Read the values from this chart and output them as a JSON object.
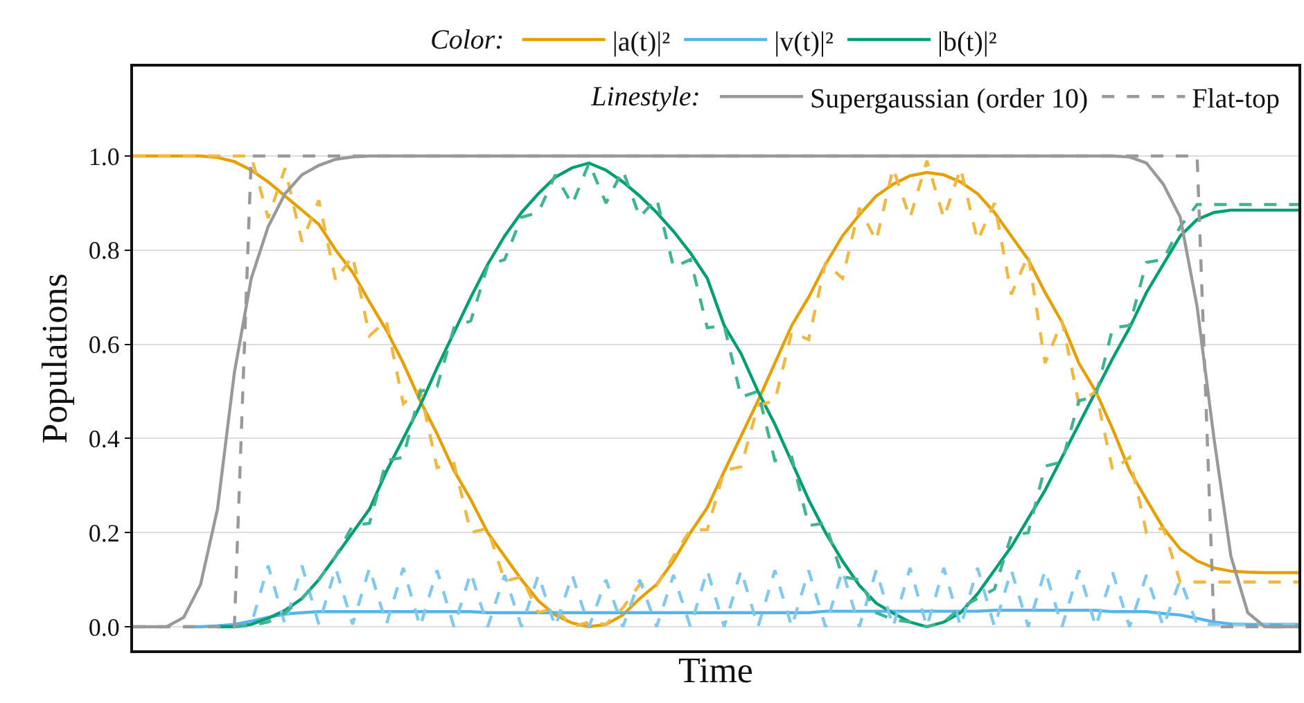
{
  "chart_data": {
    "type": "line",
    "xlabel": "Time",
    "ylabel": "Populations",
    "legend_title": [
      "Color:",
      "Linestyle:"
    ],
    "categories": [
      null,
      null,
      null,
      null,
      null,
      null,
      null,
      null,
      null,
      null,
      null,
      null,
      null,
      null,
      null,
      null,
      null,
      null,
      null,
      null,
      null,
      null,
      null,
      null,
      null,
      null,
      null,
      null,
      null,
      null,
      null,
      null,
      null,
      null,
      null,
      null,
      null,
      null,
      null,
      null,
      null,
      null,
      null,
      null,
      null,
      null,
      null,
      null,
      null,
      null,
      null,
      null,
      null,
      null,
      null,
      null,
      null,
      null,
      null,
      null,
      null,
      null,
      null,
      null,
      null,
      null,
      null,
      null,
      null,
      null
    ],
    "ylim": [
      -0.05,
      1.19
    ],
    "yticks": [
      {
        "value": 0,
        "label": "0.0"
      },
      {
        "value": 0.2,
        "label": "0.2"
      },
      {
        "value": 0.4,
        "label": "0.4"
      },
      {
        "value": 0.6,
        "label": "0.6"
      },
      {
        "value": 0.8,
        "label": "0.8"
      },
      {
        "value": 1,
        "label": "1.0"
      }
    ],
    "grid": "y",
    "tick_labels": "y",
    "marker": "none",
    "legend": [
      "top",
      "top right"
    ],
    "series": [
      {
        "name": "|a(t)|²",
        "color": "#e69f00",
        "line_style": "solid",
        "values": [
          1.0,
          1.0,
          1.0,
          1.0,
          1.0,
          0.997,
          0.988,
          0.97,
          0.945,
          0.915,
          0.885,
          0.855,
          0.8,
          0.753,
          0.69,
          0.63,
          0.56,
          0.48,
          0.41,
          0.332,
          0.27,
          0.2,
          0.15,
          0.1,
          0.055,
          0.025,
          0.008,
          0.0,
          0.005,
          0.025,
          0.06,
          0.09,
          0.14,
          0.2,
          0.253,
          0.33,
          0.405,
          0.48,
          0.56,
          0.64,
          0.7,
          0.77,
          0.83,
          0.875,
          0.915,
          0.94,
          0.958,
          0.965,
          0.96,
          0.945,
          0.92,
          0.88,
          0.83,
          0.78,
          0.71,
          0.647,
          0.56,
          0.5,
          0.42,
          0.332,
          0.27,
          0.21,
          0.165,
          0.14,
          0.125,
          0.118,
          0.116,
          0.115,
          0.115,
          0.115
        ]
      },
      {
        "name": "|v(t)|²",
        "color": "#56b4e9",
        "line_style": "solid",
        "values": [
          null,
          null,
          null,
          0,
          0,
          0.002,
          0.005,
          0.012,
          0.02,
          0.027,
          0.03,
          0.032,
          0.032,
          0.032,
          0.032,
          0.032,
          0.032,
          0.032,
          0.032,
          0.032,
          0.032,
          0.03,
          0.03,
          0.03,
          0.03,
          0.03,
          0.03,
          0.03,
          0.03,
          0.03,
          0.03,
          0.03,
          0.03,
          0.03,
          0.03,
          0.03,
          0.03,
          0.03,
          0.03,
          0.03,
          0.03,
          0.033,
          0.033,
          0.033,
          0.033,
          0.033,
          0.033,
          0.033,
          0.033,
          0.033,
          0.033,
          0.035,
          0.035,
          0.035,
          0.035,
          0.035,
          0.035,
          0.035,
          0.032,
          0.032,
          0.032,
          0.028,
          0.025,
          0.018,
          0.01,
          0.006,
          0.005,
          0.005,
          0.005,
          0.005
        ]
      },
      {
        "name": "|b(t)|²",
        "color": "#009e73",
        "line_style": "solid",
        "values": [
          null,
          null,
          null,
          null,
          null,
          0,
          0,
          0.005,
          0.018,
          0.035,
          0.06,
          0.1,
          0.15,
          0.2,
          0.25,
          0.33,
          0.4,
          0.47,
          0.55,
          0.625,
          0.7,
          0.77,
          0.83,
          0.88,
          0.92,
          0.955,
          0.975,
          0.985,
          0.97,
          0.945,
          0.915,
          0.88,
          0.84,
          0.794,
          0.74,
          0.64,
          0.58,
          0.5,
          0.43,
          0.35,
          0.27,
          0.2,
          0.14,
          0.088,
          0.05,
          0.029,
          0.01,
          0.0,
          0.01,
          0.03,
          0.07,
          0.12,
          0.17,
          0.23,
          0.29,
          0.36,
          0.43,
          0.5,
          0.57,
          0.635,
          0.71,
          0.77,
          0.83,
          0.865,
          0.88,
          0.885,
          0.885,
          0.885,
          0.885,
          0.885
        ]
      },
      {
        "color": "#f0b840",
        "line_style": "dashed",
        "values": [
          1.0,
          1.0,
          1.0,
          1.0,
          1.0,
          1.0,
          1.0,
          1.0,
          0.868,
          0.974,
          0.818,
          0.906,
          0.735,
          0.788,
          0.618,
          0.65,
          0.474,
          0.503,
          0.338,
          0.347,
          0.2,
          0.209,
          0.097,
          0.106,
          0.03,
          0.04,
          0.0,
          0.01,
          0.005,
          0.04,
          0.09,
          0.088,
          0.15,
          0.206,
          0.206,
          0.332,
          0.34,
          0.47,
          0.48,
          0.626,
          0.61,
          0.774,
          0.74,
          0.89,
          0.82,
          0.974,
          0.868,
          0.99,
          0.868,
          0.974,
          0.82,
          0.9,
          0.706,
          0.79,
          0.56,
          0.65,
          0.474,
          0.5,
          0.332,
          0.36,
          0.2,
          0.21,
          0.095,
          0.095,
          0.095,
          0.095,
          0.095,
          0.095,
          0.095,
          0.095
        ]
      },
      {
        "color": "#80c8ee",
        "line_style": "dashed",
        "values": [
          null,
          null,
          null,
          null,
          null,
          null,
          0,
          0.005,
          0.13,
          0.005,
          0.13,
          0.005,
          0.125,
          0.005,
          0.125,
          0.005,
          0.125,
          0.0,
          0.12,
          0.0,
          0.115,
          0.0,
          0.11,
          0.0,
          0.11,
          0.0,
          0.11,
          0.0,
          0.1,
          0.0,
          0.1,
          0.0,
          0.11,
          0.0,
          0.12,
          0.0,
          0.12,
          0.0,
          0.12,
          0.0,
          0.12,
          0.0,
          0.12,
          0.0,
          0.12,
          0.0,
          0.125,
          0.0,
          0.125,
          0.0,
          0.125,
          0.0,
          0.12,
          0.0,
          0.12,
          0.0,
          0.12,
          0.0,
          0.115,
          0.0,
          0.11,
          0.0,
          0.1,
          0.005,
          0.005,
          0.005,
          0.005,
          0.005,
          0.005,
          0.005
        ]
      },
      {
        "color": "#40b490",
        "line_style": "dashed",
        "values": [
          null,
          null,
          null,
          null,
          null,
          null,
          0,
          0.003,
          0.01,
          0.03,
          0.06,
          0.1,
          0.15,
          0.215,
          0.22,
          0.353,
          0.36,
          0.5,
          0.51,
          0.635,
          0.65,
          0.768,
          0.78,
          0.87,
          0.88,
          0.96,
          0.897,
          0.985,
          0.9,
          0.97,
          0.87,
          0.91,
          0.764,
          0.78,
          0.635,
          0.64,
          0.488,
          0.5,
          0.353,
          0.36,
          0.215,
          0.22,
          0.106,
          0.1,
          0.03,
          0.015,
          0.01,
          0.0,
          0.01,
          0.04,
          0.06,
          0.08,
          0.194,
          0.2,
          0.341,
          0.35,
          0.48,
          0.49,
          0.635,
          0.64,
          0.774,
          0.78,
          0.85,
          0.897,
          0.897,
          0.897,
          0.897,
          0.897,
          0.897,
          0.897
        ]
      },
      {
        "name": "Supergaussian (order 10)",
        "color": "#999999",
        "line_style": "solid",
        "values": [
          0,
          0,
          0,
          0.02,
          0.09,
          0.25,
          0.54,
          0.74,
          0.85,
          0.92,
          0.96,
          0.98,
          0.993,
          0.998,
          1.0,
          1.0,
          1.0,
          1.0,
          1.0,
          1.0,
          1.0,
          1.0,
          1.0,
          1.0,
          1.0,
          1.0,
          1.0,
          1.0,
          1.0,
          1.0,
          1.0,
          1.0,
          1.0,
          1.0,
          1.0,
          1.0,
          1.0,
          1.0,
          1.0,
          1.0,
          1.0,
          1.0,
          1.0,
          1.0,
          1.0,
          1.0,
          1.0,
          1.0,
          1.0,
          1.0,
          1.0,
          1.0,
          1.0,
          1.0,
          1.0,
          1.0,
          1.0,
          1.0,
          1.0,
          0.998,
          0.985,
          0.94,
          0.87,
          0.68,
          0.4,
          0.15,
          0.03,
          0.0,
          0,
          0
        ]
      },
      {
        "name": "Flat-top",
        "color": "#999999",
        "line_style": "dashed",
        "values": [
          0,
          0,
          0,
          0,
          0,
          0,
          0,
          1,
          1,
          1,
          1,
          1,
          1,
          1,
          1,
          1,
          1,
          1,
          1,
          1,
          1,
          1,
          1,
          1,
          1,
          1,
          1,
          1,
          1,
          1,
          1,
          1,
          1,
          1,
          1,
          1,
          1,
          1,
          1,
          1,
          1,
          1,
          1,
          1,
          1,
          1,
          1,
          1,
          1,
          1,
          1,
          1,
          1,
          1,
          1,
          1,
          1,
          1,
          1,
          1,
          1,
          1,
          1,
          1,
          0,
          0,
          0,
          0,
          0,
          0
        ]
      }
    ]
  }
}
